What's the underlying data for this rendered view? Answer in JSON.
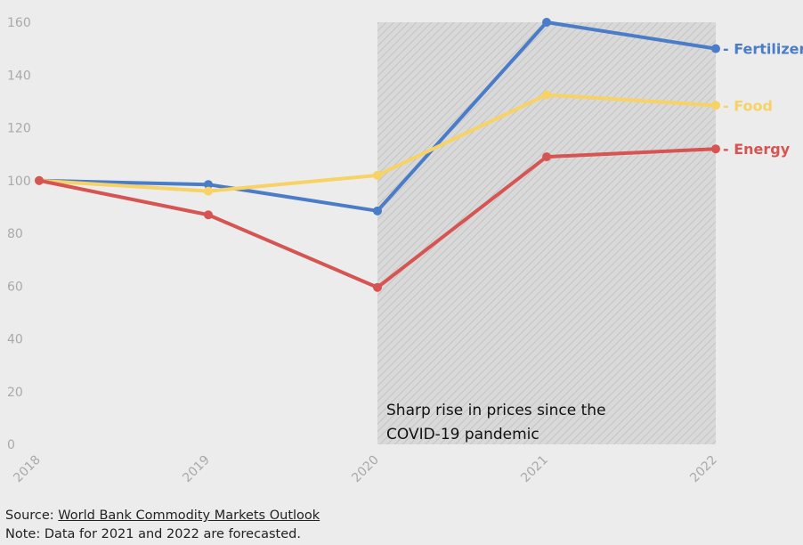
{
  "chart_data": {
    "type": "line",
    "x": [
      "2018",
      "2019",
      "2020",
      "2021",
      "2022"
    ],
    "ylim": [
      0,
      160
    ],
    "yticks": [
      0,
      20,
      40,
      60,
      80,
      100,
      120,
      140,
      160
    ],
    "grid": false,
    "series": [
      {
        "name": "Fertilizers",
        "color": "#4a7cc7",
        "values": [
          100,
          98.5,
          88.5,
          160,
          150
        ]
      },
      {
        "name": "Food",
        "color": "#f7d264",
        "values": [
          100,
          96,
          102,
          132.5,
          128.5
        ]
      },
      {
        "name": "Energy",
        "color": "#d65452",
        "values": [
          100,
          87,
          59.5,
          109,
          112
        ]
      }
    ],
    "shaded_region": {
      "x_start": "2020",
      "x_end": "2022",
      "y_top": 160,
      "label_lines": [
        "Sharp rise in prices since the",
        "COVID-19 pandemic"
      ]
    }
  },
  "footer": {
    "source_prefix": "Source: ",
    "source_link": "World Bank Commodity Markets Outlook",
    "note": "Note: Data for 2021 and 2022 are forecasted."
  }
}
